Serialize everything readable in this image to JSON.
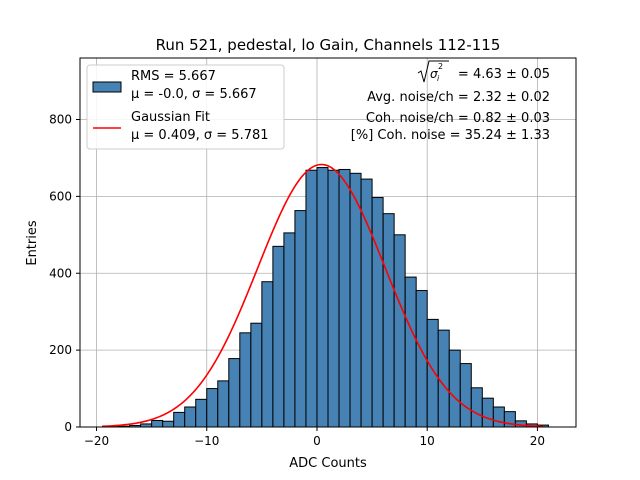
{
  "chart_data": {
    "type": "bar",
    "title": "Run 521, pedestal, lo Gain, Channels 112-115",
    "xlabel": "ADC Counts",
    "ylabel": "Entries",
    "xlim": [
      -21.5,
      23.5
    ],
    "ylim": [
      0,
      960
    ],
    "grid": true,
    "xticks": [
      -20,
      -10,
      0,
      10,
      20
    ],
    "yticks": [
      0,
      200,
      400,
      600,
      800
    ],
    "bar_color": "#4682b4",
    "fit_color": "#ff0000",
    "bin_width": 1,
    "bin_edges_start": -19,
    "bin_counts": [
      1,
      2,
      4,
      8,
      17,
      15,
      38,
      52,
      72,
      100,
      120,
      178,
      245,
      270,
      378,
      470,
      505,
      563,
      668,
      675,
      668,
      670,
      660,
      645,
      597,
      555,
      500,
      390,
      355,
      280,
      252,
      200,
      165,
      102,
      75,
      52,
      40,
      16,
      8,
      5
    ],
    "fit": {
      "name": "Gaussian Fit",
      "amplitude": 683,
      "mu": 0.409,
      "sigma": 5.781,
      "x_range": [
        -19.5,
        20.5
      ]
    },
    "legend": {
      "placement": "top-left",
      "entries": [
        {
          "type": "patch",
          "line1": "RMS = 5.667",
          "line2": "μ = -0.0, σ = 5.667"
        },
        {
          "type": "line",
          "line1": "Gaussian Fit",
          "line2": "μ = 0.409, σ = 5.781"
        }
      ]
    },
    "annotations": {
      "placement": "top-right",
      "lines": [
        "= 4.63 ± 0.05",
        "Avg. noise/ch = 2.32 ± 0.02",
        "Coh. noise/ch = 0.82 ± 0.03",
        "[%] Coh. noise = 35.24 ± 1.33"
      ],
      "sqrt_symbol": "σ",
      "sqrt_sub": "i",
      "sqrt_sup": "2"
    }
  }
}
